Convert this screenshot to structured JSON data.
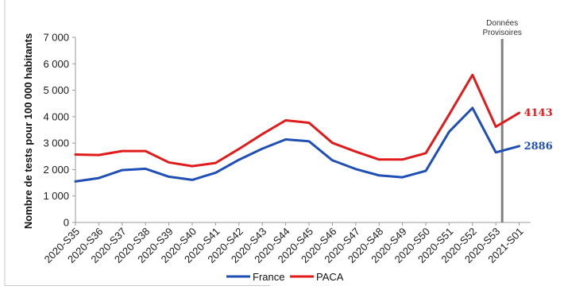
{
  "chart_data": {
    "type": "line",
    "title": "",
    "xlabel": "",
    "ylabel": "Nombre de tests pour 100 000 habitants",
    "ylim": [
      0,
      7000
    ],
    "yticks": [
      0,
      1000,
      2000,
      3000,
      4000,
      5000,
      6000,
      7000
    ],
    "ytick_labels": [
      "0",
      "1 000",
      "2 000",
      "3 000",
      "4 000",
      "5 000",
      "6 000",
      "7 000"
    ],
    "categories": [
      "2020-S35",
      "2020-S36",
      "2020-S37",
      "2020-S38",
      "2020-S39",
      "2020-S40",
      "2020-S41",
      "2020-S42",
      "2020-S43",
      "2020-S44",
      "2020-S45",
      "2020-S46",
      "2020-S47",
      "2020-S48",
      "2020-S49",
      "2020-S50",
      "2020-S51",
      "2020-S52",
      "2020-S53",
      "2021-S01"
    ],
    "series": [
      {
        "name": "France",
        "color": "#1f4fb4",
        "values": [
          1550,
          1680,
          1980,
          2030,
          1730,
          1610,
          1880,
          2370,
          2790,
          3140,
          3070,
          2350,
          2020,
          1780,
          1710,
          1950,
          3430,
          4330,
          2650,
          2886
        ]
      },
      {
        "name": "PACA",
        "color": "#e01b1b",
        "values": [
          2570,
          2550,
          2700,
          2700,
          2270,
          2130,
          2250,
          2780,
          3340,
          3860,
          3770,
          3010,
          2680,
          2380,
          2380,
          2620,
          4080,
          5580,
          3620,
          4143
        ]
      }
    ],
    "end_labels": [
      {
        "series": "PACA",
        "text": "4143",
        "color": "#e01b1b"
      },
      {
        "series": "France",
        "text": "2886",
        "color": "#1f4fb4"
      }
    ],
    "annotation": {
      "line1": "Données",
      "line2": "Provisoires",
      "at_category": "2020-S53"
    },
    "legend": {
      "position": "bottom",
      "items": [
        "France",
        "PACA"
      ]
    },
    "grid": false
  }
}
